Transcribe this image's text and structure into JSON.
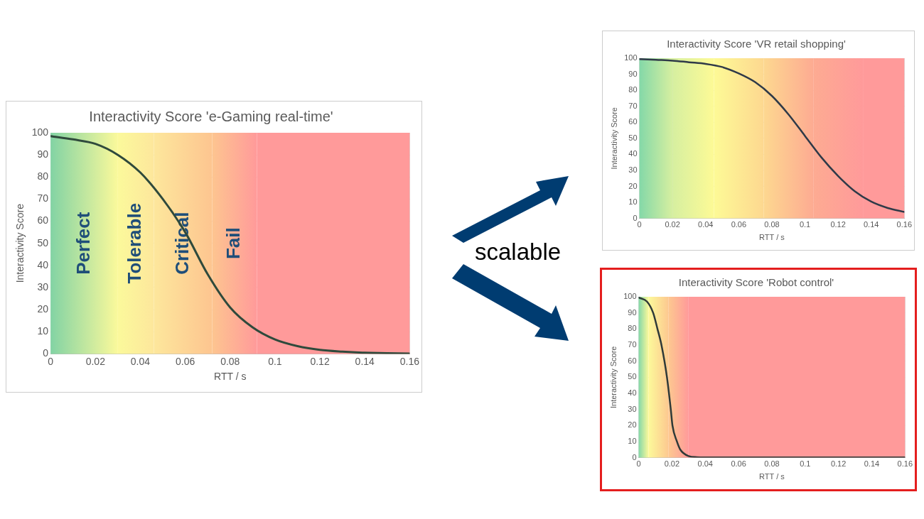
{
  "chart_data": [
    {
      "type": "line",
      "title": "Interactivity Score 'e-Gaming real-time'",
      "xlabel": "RTT / s",
      "ylabel": "Interactivity Score",
      "xlim": [
        0,
        0.16
      ],
      "xticks": [
        0,
        0.02,
        0.04,
        0.06,
        0.08,
        0.1,
        0.12,
        0.14,
        0.16
      ],
      "ylim": [
        0,
        100
      ],
      "yticks": [
        0,
        10,
        20,
        30,
        40,
        50,
        60,
        70,
        80,
        90,
        100
      ],
      "grid": true,
      "legend": false,
      "marker": "none",
      "line_style": "solid",
      "bands": [
        {
          "axis": "x",
          "from": 0,
          "to": 0.03,
          "color": "#82d3a4",
          "label": "Perfect"
        },
        {
          "axis": "x",
          "from": 0.03,
          "to": 0.046,
          "color": "#fbf99b",
          "label": "Tolerable"
        },
        {
          "axis": "x",
          "from": 0.046,
          "to": 0.072,
          "color": "#fde79c",
          "label": "Critical"
        },
        {
          "axis": "x",
          "from": 0.072,
          "to": 0.092,
          "color": "#fdc590",
          "label": "Fail"
        },
        {
          "axis": "x",
          "from": 0.092,
          "to": 0.16,
          "color": "#ff9a9a"
        }
      ],
      "series": [
        {
          "color": "#2f4a3c",
          "x": [
            0,
            0.01,
            0.02,
            0.03,
            0.04,
            0.05,
            0.06,
            0.07,
            0.08,
            0.09,
            0.1,
            0.11,
            0.12,
            0.13,
            0.14,
            0.15,
            0.16
          ],
          "values": [
            98.5,
            97,
            95,
            90,
            82,
            70,
            55,
            36,
            21,
            12,
            6.5,
            3.5,
            1.8,
            1,
            0.5,
            0.3,
            0.1
          ]
        }
      ]
    },
    {
      "type": "line",
      "title": "Interactivity Score 'VR retail shopping'",
      "xlabel": "RTT / s",
      "ylabel": "Interactivity Score",
      "xlim": [
        0,
        0.16
      ],
      "xticks": [
        0,
        0.02,
        0.04,
        0.06,
        0.08,
        0.1,
        0.12,
        0.14,
        0.16
      ],
      "ylim": [
        0,
        100
      ],
      "yticks": [
        0,
        10,
        20,
        30,
        40,
        50,
        60,
        70,
        80,
        90,
        100
      ],
      "grid": true,
      "legend": false,
      "marker": "none",
      "line_style": "solid",
      "bands": [
        {
          "axis": "x",
          "from": 0,
          "to": 0.02,
          "color": "#84d8a8"
        },
        {
          "axis": "x",
          "from": 0.02,
          "to": 0.045,
          "color": "#d6efa0"
        },
        {
          "axis": "x",
          "from": 0.045,
          "to": 0.075,
          "color": "#fdfa96"
        },
        {
          "axis": "x",
          "from": 0.075,
          "to": 0.105,
          "color": "#fdd890"
        },
        {
          "axis": "x",
          "from": 0.105,
          "to": 0.135,
          "color": "#fdab92"
        },
        {
          "axis": "x",
          "from": 0.135,
          "to": 0.16,
          "color": "#ff9a9a"
        }
      ],
      "series": [
        {
          "color": "#2f3a48",
          "x": [
            0,
            0.01,
            0.02,
            0.03,
            0.04,
            0.05,
            0.06,
            0.07,
            0.08,
            0.09,
            0.1,
            0.11,
            0.12,
            0.13,
            0.14,
            0.15,
            0.16
          ],
          "values": [
            99.5,
            99,
            98.5,
            97.5,
            96.5,
            94.5,
            90.5,
            85,
            76.5,
            65,
            51.5,
            38,
            26.5,
            17,
            10.5,
            6.5,
            4
          ]
        }
      ]
    },
    {
      "type": "line",
      "title": "Interactivity Score 'Robot control'",
      "xlabel": "RTT / s",
      "ylabel": "Interactivity Score",
      "xlim": [
        0,
        0.16
      ],
      "xticks": [
        0,
        0.02,
        0.04,
        0.06,
        0.08,
        0.1,
        0.12,
        0.14,
        0.16
      ],
      "ylim": [
        0,
        100
      ],
      "yticks": [
        0,
        10,
        20,
        30,
        40,
        50,
        60,
        70,
        80,
        90,
        100
      ],
      "grid": true,
      "legend": false,
      "marker": "none",
      "line_style": "solid",
      "bands": [
        {
          "axis": "x",
          "from": 0,
          "to": 0.006,
          "color": "#84d8a8"
        },
        {
          "axis": "x",
          "from": 0.006,
          "to": 0.018,
          "color": "#fcf99a"
        },
        {
          "axis": "x",
          "from": 0.018,
          "to": 0.03,
          "color": "#fdc890"
        },
        {
          "axis": "x",
          "from": 0.03,
          "to": 0.16,
          "color": "#ff9a9a"
        }
      ],
      "series": [
        {
          "color": "#2f3a38",
          "x": [
            0,
            0.005,
            0.0087,
            0.0113,
            0.0137,
            0.017,
            0.0193,
            0.0203,
            0.023,
            0.025,
            0.03,
            0.035,
            0.04,
            0.16
          ],
          "values": [
            99.5,
            97,
            90,
            80,
            70,
            50,
            30,
            20,
            10,
            5,
            1,
            0.3,
            0.2,
            0.1
          ]
        }
      ]
    },
    {
      "type": "other",
      "annotations": [
        "scalable"
      ]
    }
  ]
}
